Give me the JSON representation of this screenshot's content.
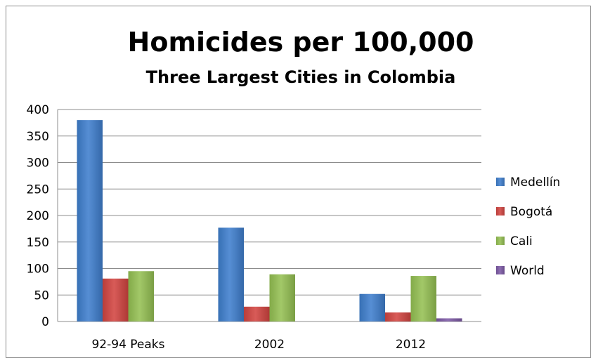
{
  "chart_data": {
    "type": "bar",
    "title": "Homicides per 100,000",
    "subtitle": "Three Largest Cities in Colombia",
    "xlabel": "",
    "ylabel": "",
    "categories": [
      "92-94 Peaks",
      "2002",
      "2012"
    ],
    "series": [
      {
        "name": "Medellín",
        "values": [
          380,
          177,
          52
        ],
        "color": "#3f7fce"
      },
      {
        "name": "Bogotá",
        "values": [
          81,
          28,
          17
        ],
        "color": "#d34541"
      },
      {
        "name": "Cali",
        "values": [
          95,
          89,
          86
        ],
        "color": "#95c153"
      },
      {
        "name": "World",
        "values": [
          0,
          0,
          6
        ],
        "color": "#7d5aa6"
      }
    ],
    "ylim": [
      0,
      400
    ],
    "yticks": [
      0,
      50,
      100,
      150,
      200,
      250,
      300,
      350,
      400
    ],
    "grid": true,
    "legend_position": "right"
  }
}
